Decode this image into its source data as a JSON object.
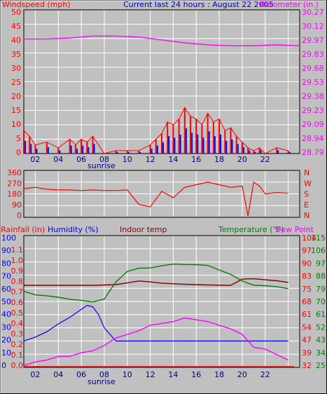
{
  "header": {
    "left_label": "Windspeed (mph)",
    "title": "Current last 24 hours : August 22 2005",
    "right_label": "Barometer (in.)"
  },
  "bottom_header": {
    "rainfall": "Rainfall (in)",
    "humidity": "Humidity (%)",
    "indoor": "Indoor temp",
    "temperature": "Temperature (°F)",
    "dewpoint": "Dew Point"
  },
  "colors": {
    "background": "#c0c0c0",
    "wind": "#ff0000",
    "gust_overlay": "#0000ff",
    "barometer": "#ff00ff",
    "direction": "#ff0000",
    "temperature": "#008000",
    "indoor": "#800000",
    "humidity": "#0000ff",
    "dewpoint": "#ff00ff",
    "rainfall": "#ff0000",
    "x_labels": "#000080"
  },
  "chart_data": [
    {
      "type": "line",
      "x_labels": [
        "02",
        "04",
        "06",
        "08",
        "10",
        "12",
        "14",
        "16",
        "18",
        "20",
        "22"
      ],
      "x_annotation": "sunrise",
      "left_axis": {
        "label": "Windspeed (mph)",
        "ticks": [
          "50",
          "45",
          "40",
          "35",
          "30",
          "25",
          "20",
          "15",
          "10",
          "5",
          "0"
        ],
        "range": [
          0,
          50
        ]
      },
      "right_axis": {
        "label": "Barometer (in.)",
        "ticks": [
          "30.27",
          "30.12",
          "29.97",
          "29.83",
          "29.68",
          "29.53",
          "29.38",
          "29.23",
          "29.09",
          "28.94",
          "28.79"
        ],
        "range": [
          28.79,
          30.27
        ]
      },
      "series": [
        {
          "name": "Windspeed",
          "x": [
            0,
            0.5,
            1,
            2,
            3,
            4,
            4.5,
            5,
            5.5,
            6,
            7,
            8,
            9,
            10,
            11,
            11.5,
            12,
            12.5,
            13,
            13.5,
            14,
            14.5,
            15,
            15.5,
            16,
            16.5,
            17,
            17.5,
            18,
            18.5,
            19,
            19.5,
            20,
            20.5,
            21,
            22,
            23
          ],
          "y": [
            8,
            6,
            3,
            4,
            2,
            5,
            3,
            5,
            4,
            6,
            0,
            1,
            1,
            1,
            3,
            5,
            7,
            11,
            10,
            12,
            16,
            13,
            12,
            10,
            14,
            11,
            12,
            8,
            9,
            6,
            4,
            2,
            1,
            2,
            0,
            2,
            1
          ]
        },
        {
          "name": "Barometer",
          "x": [
            0,
            2,
            4,
            6,
            8,
            10,
            12,
            14,
            16,
            18,
            20,
            22,
            24
          ],
          "y": [
            29.97,
            29.97,
            29.98,
            30.0,
            30.0,
            29.99,
            29.96,
            29.93,
            29.91,
            29.9,
            29.9,
            29.91,
            29.9
          ]
        }
      ]
    },
    {
      "type": "line",
      "x_labels": [],
      "left_axis": {
        "ticks": [
          "360",
          "270",
          "180",
          "90",
          "0"
        ],
        "range": [
          0,
          360
        ]
      },
      "right_axis": {
        "ticks": [
          "N",
          "W",
          "S",
          "E",
          "N"
        ]
      },
      "series": [
        {
          "name": "Wind direction",
          "x": [
            0,
            1,
            2,
            3,
            4,
            5,
            6,
            7,
            8,
            9,
            10,
            11,
            12,
            13,
            14,
            15,
            16,
            17,
            18,
            19,
            19.5,
            20,
            20.5,
            21,
            22,
            23
          ],
          "y": [
            220,
            230,
            215,
            210,
            210,
            205,
            210,
            205,
            205,
            210,
            100,
            80,
            200,
            150,
            230,
            250,
            270,
            250,
            230,
            240,
            10,
            270,
            240,
            180,
            190,
            185
          ]
        }
      ]
    },
    {
      "type": "line",
      "x_labels": [
        "02",
        "04",
        "06",
        "08",
        "10",
        "12",
        "14",
        "16",
        "18",
        "20",
        "22"
      ],
      "x_annotation": "sunrise",
      "left_axes": [
        {
          "label": "Rainfall (in)",
          "ticks": [
            "1.1",
            "1.0",
            "0.9",
            "0.8",
            "0.7",
            "0.6",
            "0.5",
            "0.4",
            "0.3",
            "0.2",
            "0.1",
            "0.0"
          ],
          "range": [
            0,
            1.1
          ]
        },
        {
          "label": "Humidity (%)",
          "ticks": [
            "100",
            "90",
            "80",
            "70",
            "60",
            "50",
            "40",
            "30",
            "20",
            "10",
            "0"
          ],
          "range": [
            0,
            100
          ]
        }
      ],
      "right_axes": [
        {
          "label": "Temperature (°F)",
          "ticks": [
            "104",
            "97",
            "90",
            "83",
            "75",
            "68",
            "61",
            "54",
            "47",
            "39",
            "32"
          ],
          "range": [
            32,
            104
          ]
        },
        {
          "label": "Dew Point",
          "ticks": [
            "115",
            "106",
            "97",
            "88",
            "79",
            "70",
            "61",
            "52",
            "43",
            "34",
            "25"
          ],
          "range": [
            25,
            115
          ]
        }
      ],
      "series": [
        {
          "name": "Temperature",
          "x": [
            0,
            1,
            2,
            3,
            4,
            5,
            6,
            7,
            8,
            9,
            10,
            11,
            12,
            13,
            14,
            15,
            16,
            17,
            18,
            19,
            20,
            21,
            22,
            23
          ],
          "y": [
            73.5,
            71.6,
            71.1,
            70.3,
            69.2,
            68.6,
            67.7,
            69.3,
            78.6,
            84.4,
            86.2,
            86.3,
            87.5,
            88.4,
            88.2,
            88.1,
            87.7,
            85.2,
            82.8,
            79.2,
            76.9,
            76.6,
            76.1,
            75.0
          ]
        },
        {
          "name": "Indoor temp",
          "x": [
            0,
            2,
            4,
            6,
            8,
            9,
            10,
            11,
            12,
            14,
            16,
            18,
            19,
            20,
            22,
            23
          ],
          "y": [
            76.8,
            76.8,
            76.8,
            76.8,
            77.2,
            78.2,
            79.2,
            78.7,
            78.0,
            77.4,
            77.0,
            76.8,
            80.2,
            80.4,
            79.3,
            78.4
          ]
        },
        {
          "name": "Humidity",
          "x": [
            0,
            1,
            2,
            3,
            4,
            5,
            5.5,
            6,
            6.5,
            7,
            8,
            10,
            12,
            14,
            16,
            18,
            20,
            22,
            23
          ],
          "y": [
            20,
            23,
            27,
            33,
            38,
            44,
            47,
            46,
            40,
            30,
            20,
            20,
            20,
            20,
            20,
            20,
            20,
            20,
            20
          ]
        },
        {
          "name": "Dew Point",
          "x": [
            0,
            1,
            2,
            3,
            4,
            5,
            6,
            7,
            8,
            9,
            10,
            11,
            12,
            13,
            14,
            15,
            16,
            17,
            18,
            19,
            20,
            21,
            22,
            23
          ],
          "y": [
            33,
            35,
            36,
            38,
            38,
            40,
            41,
            44,
            48,
            50,
            52,
            55,
            56,
            57,
            59,
            58,
            57,
            55,
            53,
            50,
            43,
            42,
            39,
            36
          ]
        },
        {
          "name": "Rainfall",
          "x": [
            0,
            23.5
          ],
          "y": [
            0.0,
            0.0
          ]
        }
      ]
    }
  ]
}
